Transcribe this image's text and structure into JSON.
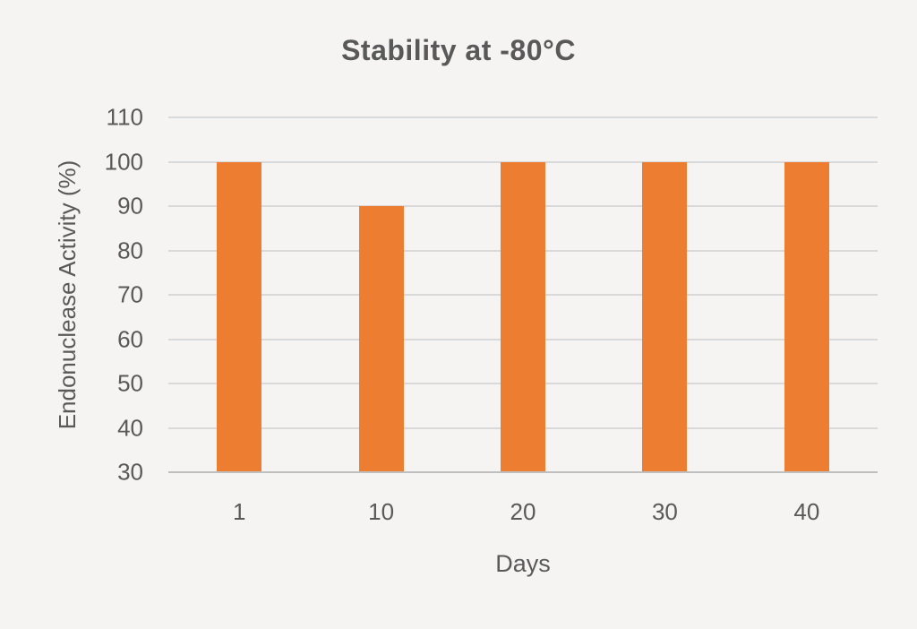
{
  "chart_data": {
    "type": "bar",
    "title": "Stability at -80°C",
    "xlabel": "Days",
    "ylabel": "Endonuclease Activity (%)",
    "categories": [
      "1",
      "10",
      "20",
      "30",
      "40"
    ],
    "values": [
      100,
      90,
      100,
      100,
      100
    ],
    "ylim": [
      30,
      110
    ],
    "ytick_step": 10,
    "grid": true,
    "legend": false,
    "colors": {
      "bar": "#ED7D31",
      "gridline": "#D9D9D9",
      "axis_line": "#BFBFBF",
      "text": "#595959",
      "background": "#F5F4F2"
    }
  }
}
